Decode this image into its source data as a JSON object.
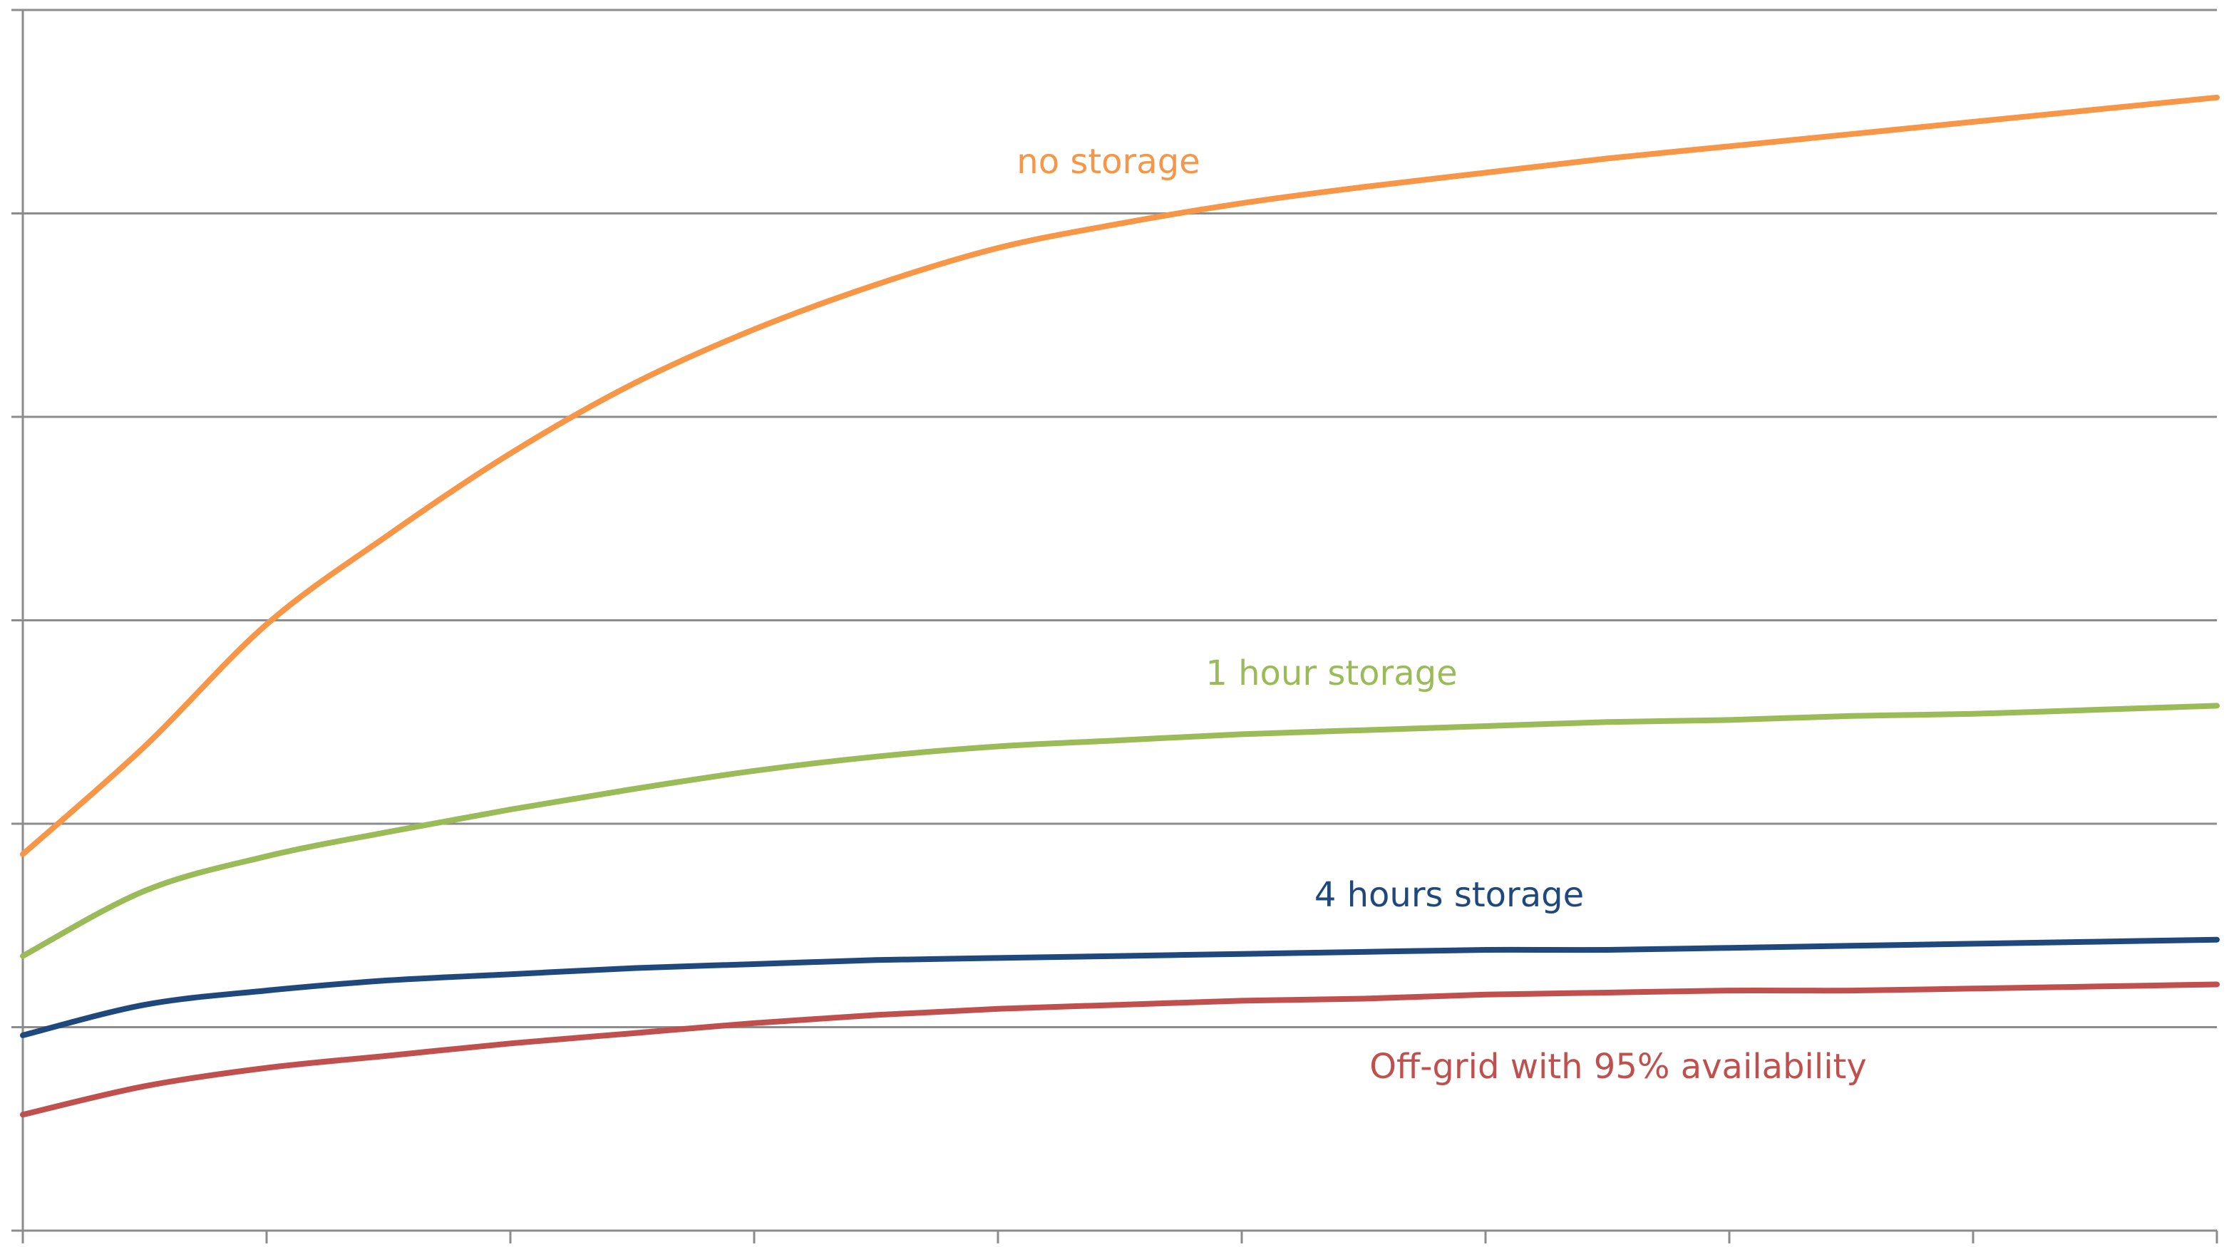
{
  "chart_data": {
    "type": "line",
    "title": "",
    "xlabel": "",
    "ylabel": "",
    "x": [
      0,
      0.5,
      1,
      1.5,
      2,
      2.5,
      3,
      3.5,
      4,
      4.5,
      5,
      5.5,
      6,
      6.5,
      7,
      7.5,
      8,
      8.5,
      9
    ],
    "xlim": [
      0,
      9
    ],
    "ylim": [
      0,
      6
    ],
    "x_tick_count": 10,
    "y_tick_count": 7,
    "grid": "horizontal",
    "tick_labels_shown": false,
    "series": [
      {
        "name": "no storage",
        "color": "#F79646",
        "values": [
          1.85,
          2.38,
          2.98,
          3.42,
          3.82,
          4.16,
          4.43,
          4.65,
          4.83,
          4.95,
          5.05,
          5.13,
          5.2,
          5.27,
          5.33,
          5.39,
          5.45,
          5.51,
          5.57
        ]
      },
      {
        "name": "1 hour storage",
        "color": "#9BBB59",
        "values": [
          1.35,
          1.67,
          1.84,
          1.96,
          2.07,
          2.17,
          2.26,
          2.33,
          2.38,
          2.41,
          2.44,
          2.46,
          2.48,
          2.5,
          2.51,
          2.53,
          2.54,
          2.56,
          2.58
        ]
      },
      {
        "name": "4 hours storage",
        "color": "#1F497D",
        "values": [
          0.96,
          1.11,
          1.18,
          1.23,
          1.26,
          1.29,
          1.31,
          1.33,
          1.34,
          1.35,
          1.36,
          1.37,
          1.38,
          1.38,
          1.39,
          1.4,
          1.41,
          1.42,
          1.43
        ]
      },
      {
        "name": "Off-grid with 95% availability",
        "color": "#C0504D",
        "values": [
          0.57,
          0.71,
          0.8,
          0.86,
          0.92,
          0.97,
          1.02,
          1.06,
          1.09,
          1.11,
          1.13,
          1.14,
          1.16,
          1.17,
          1.18,
          1.18,
          1.19,
          1.2,
          1.21
        ]
      }
    ],
    "annotations": [
      {
        "series": "no storage",
        "text": "no storage"
      },
      {
        "series": "1 hour storage",
        "text": "1 hour storage"
      },
      {
        "series": "4 hours storage",
        "text": "4 hours storage"
      },
      {
        "series": "Off-grid with 95% availability",
        "text": "Off-grid with 95% availability"
      }
    ]
  },
  "colors": {
    "grid": "#8C8C8C",
    "axis": "#8C8C8C",
    "background": "#FFFFFF"
  }
}
